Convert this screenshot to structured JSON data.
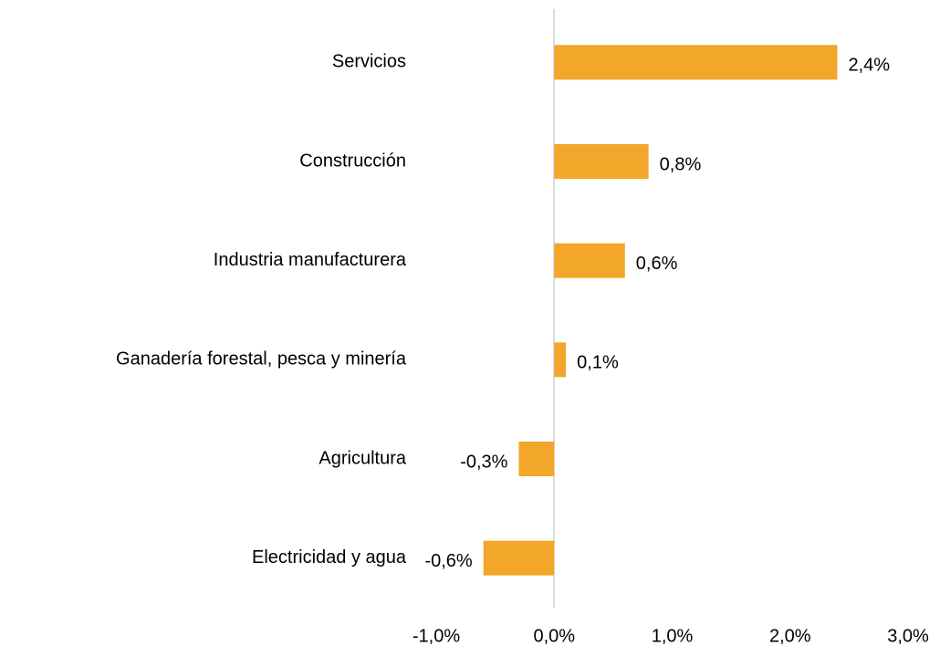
{
  "chart_data": {
    "type": "barh",
    "categories": [
      "Servicios",
      "Construcción",
      "Industria manufacturera",
      "Ganadería forestal,  pesca y minería",
      "Agricultura",
      "Electricidad y agua"
    ],
    "values": [
      2.4,
      0.8,
      0.6,
      0.1,
      -0.3,
      -0.6
    ],
    "value_labels": [
      "2,4%",
      "0,8%",
      "0,6%",
      "0,1%",
      "-0,3%",
      "-0,6%"
    ],
    "color": "#f2a62a",
    "xlim": [
      -1,
      3
    ],
    "xticks": [
      {
        "value": -1,
        "label": "-1,0%"
      },
      {
        "value": 0,
        "label": "0,0%"
      },
      {
        "value": 1,
        "label": "1,0%"
      },
      {
        "value": 2,
        "label": "2,0%"
      },
      {
        "value": 3,
        "label": "3,0%"
      }
    ]
  }
}
